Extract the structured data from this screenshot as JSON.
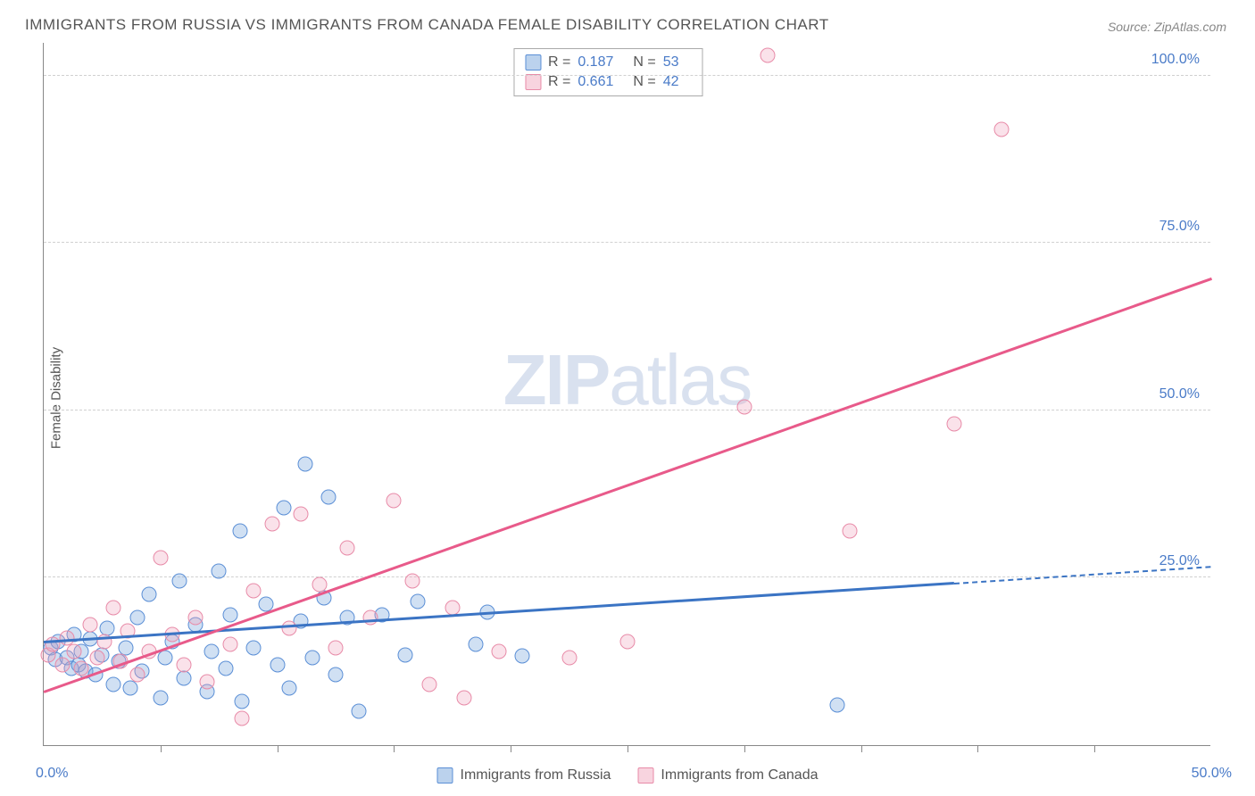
{
  "title": "IMMIGRANTS FROM RUSSIA VS IMMIGRANTS FROM CANADA FEMALE DISABILITY CORRELATION CHART",
  "source": "Source: ZipAtlas.com",
  "ylabel": "Female Disability",
  "watermark_a": "ZIP",
  "watermark_b": "atlas",
  "chart": {
    "type": "scatter",
    "xlim": [
      0,
      50
    ],
    "ylim": [
      0,
      105
    ],
    "x_ticks_minor_step": 5,
    "y_gridlines": [
      25,
      50,
      75,
      100
    ],
    "y_tick_labels": [
      "25.0%",
      "50.0%",
      "75.0%",
      "100.0%"
    ],
    "x_tick_labels": {
      "0": "0.0%",
      "50": "50.0%"
    },
    "background_color": "#ffffff",
    "grid_color": "#d0d0d0",
    "axis_color": "#888888",
    "tick_label_color": "#4a7bc8",
    "marker_radius": 8.5,
    "series": [
      {
        "name": "Immigrants from Russia",
        "color_fill": "rgba(120,165,220,0.35)",
        "color_stroke": "#5b8fd6",
        "trend_color": "#3b74c4",
        "R": "0.187",
        "N": "53",
        "trend": {
          "x1": 0,
          "y1": 15.2,
          "x2": 39,
          "y2": 24.0,
          "extrap_x2": 50,
          "extrap_y2": 26.5
        },
        "points": [
          [
            0.3,
            14.5
          ],
          [
            0.5,
            12.8
          ],
          [
            0.6,
            15.5
          ],
          [
            1.0,
            13.0
          ],
          [
            1.2,
            11.5
          ],
          [
            1.3,
            16.5
          ],
          [
            1.5,
            12.0
          ],
          [
            1.6,
            14.0
          ],
          [
            1.8,
            11.0
          ],
          [
            2.0,
            15.8
          ],
          [
            2.2,
            10.5
          ],
          [
            2.5,
            13.5
          ],
          [
            2.7,
            17.5
          ],
          [
            3.0,
            9.0
          ],
          [
            3.2,
            12.5
          ],
          [
            3.5,
            14.5
          ],
          [
            3.7,
            8.5
          ],
          [
            4.0,
            19.0
          ],
          [
            4.2,
            11.0
          ],
          [
            4.5,
            22.5
          ],
          [
            5.0,
            7.0
          ],
          [
            5.2,
            13.0
          ],
          [
            5.5,
            15.5
          ],
          [
            5.8,
            24.5
          ],
          [
            6.0,
            10.0
          ],
          [
            6.5,
            18.0
          ],
          [
            7.0,
            8.0
          ],
          [
            7.2,
            14.0
          ],
          [
            7.5,
            26.0
          ],
          [
            7.8,
            11.5
          ],
          [
            8.0,
            19.5
          ],
          [
            8.4,
            32.0
          ],
          [
            8.5,
            6.5
          ],
          [
            9.0,
            14.5
          ],
          [
            9.5,
            21.0
          ],
          [
            10.0,
            12.0
          ],
          [
            10.3,
            35.5
          ],
          [
            10.5,
            8.5
          ],
          [
            11.0,
            18.5
          ],
          [
            11.2,
            42.0
          ],
          [
            11.5,
            13.0
          ],
          [
            12.0,
            22.0
          ],
          [
            12.2,
            37.0
          ],
          [
            12.5,
            10.5
          ],
          [
            13.0,
            19.0
          ],
          [
            13.5,
            5.0
          ],
          [
            14.5,
            19.5
          ],
          [
            15.5,
            13.5
          ],
          [
            16.0,
            21.5
          ],
          [
            18.5,
            15.0
          ],
          [
            19.0,
            19.8
          ],
          [
            20.5,
            13.3
          ],
          [
            34.0,
            6.0
          ]
        ]
      },
      {
        "name": "Immigrants from Canada",
        "color_fill": "rgba(240,160,185,0.3)",
        "color_stroke": "#e88ba8",
        "trend_color": "#e85a8a",
        "R": "0.661",
        "N": "42",
        "trend": {
          "x1": 0,
          "y1": 7.8,
          "x2": 50,
          "y2": 69.5
        },
        "points": [
          [
            0.2,
            13.5
          ],
          [
            0.4,
            15.0
          ],
          [
            0.8,
            12.0
          ],
          [
            1.0,
            16.0
          ],
          [
            1.3,
            14.0
          ],
          [
            1.6,
            11.5
          ],
          [
            2.0,
            18.0
          ],
          [
            2.3,
            13.0
          ],
          [
            2.6,
            15.5
          ],
          [
            3.0,
            20.5
          ],
          [
            3.3,
            12.5
          ],
          [
            3.6,
            17.0
          ],
          [
            4.0,
            10.5
          ],
          [
            4.5,
            14.0
          ],
          [
            5.0,
            28.0
          ],
          [
            5.5,
            16.5
          ],
          [
            6.0,
            12.0
          ],
          [
            6.5,
            19.0
          ],
          [
            7.0,
            9.5
          ],
          [
            8.0,
            15.0
          ],
          [
            8.5,
            4.0
          ],
          [
            9.0,
            23.0
          ],
          [
            9.8,
            33.0
          ],
          [
            10.5,
            17.5
          ],
          [
            11.0,
            34.5
          ],
          [
            11.8,
            24.0
          ],
          [
            12.5,
            14.5
          ],
          [
            13.0,
            29.5
          ],
          [
            14.0,
            19.0
          ],
          [
            15.0,
            36.5
          ],
          [
            15.8,
            24.5
          ],
          [
            16.5,
            9.0
          ],
          [
            17.5,
            20.5
          ],
          [
            18.0,
            7.0
          ],
          [
            19.5,
            14.0
          ],
          [
            22.5,
            13.0
          ],
          [
            25.0,
            15.5
          ],
          [
            30.0,
            50.5
          ],
          [
            31.0,
            103.0
          ],
          [
            34.5,
            32.0
          ],
          [
            39.0,
            48.0
          ],
          [
            41.0,
            92.0
          ]
        ]
      }
    ]
  },
  "stats_labels": {
    "R": "R =",
    "N": "N ="
  },
  "legend": {
    "items": [
      "Immigrants from Russia",
      "Immigrants from Canada"
    ]
  }
}
